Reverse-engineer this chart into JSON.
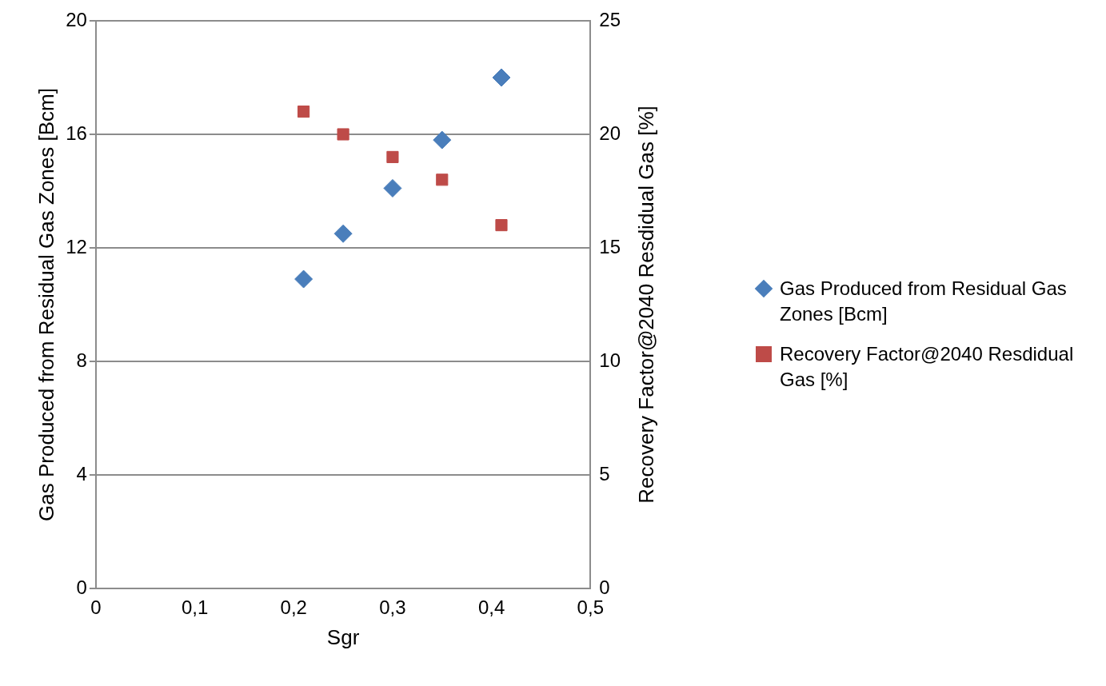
{
  "chart_data": {
    "type": "scatter",
    "xlabel": "Sgr",
    "ylabel": "Gas Produced from Residual Gas Zones [Bcm]",
    "y2label": "Recovery Factor@2040 Resdidual Gas [%]",
    "xlim": [
      0,
      0.5
    ],
    "xticks": [
      {
        "value": 0,
        "label": "0"
      },
      {
        "value": 0.1,
        "label": "0,1"
      },
      {
        "value": 0.2,
        "label": "0,2"
      },
      {
        "value": 0.3,
        "label": "0,3"
      },
      {
        "value": 0.4,
        "label": "0,4"
      },
      {
        "value": 0.5,
        "label": "0,5"
      }
    ],
    "ylim": [
      0,
      20
    ],
    "yticks": [
      0,
      4,
      8,
      12,
      16,
      20
    ],
    "y2lim": [
      0,
      25
    ],
    "y2ticks": [
      0,
      5,
      10,
      15,
      20,
      25
    ],
    "grid": "y",
    "legend": "right",
    "series": [
      {
        "name": "Gas Produced from Residual Gas Zones [Bcm]",
        "color": "#4a7ebb",
        "marker": "diamond",
        "x": [
          0.21,
          0.25,
          0.3,
          0.35,
          0.41
        ],
        "values": [
          10.9,
          12.5,
          14.1,
          15.8,
          18
        ]
      },
      {
        "name": "Recovery Factor@2040 Resdidual Gas [%]",
        "color": "#be4b48",
        "marker": "square",
        "axis": "y2",
        "x": [
          0.21,
          0.25,
          0.3,
          0.35,
          0.41
        ],
        "values": [
          21,
          20,
          19,
          18,
          16
        ]
      }
    ]
  }
}
